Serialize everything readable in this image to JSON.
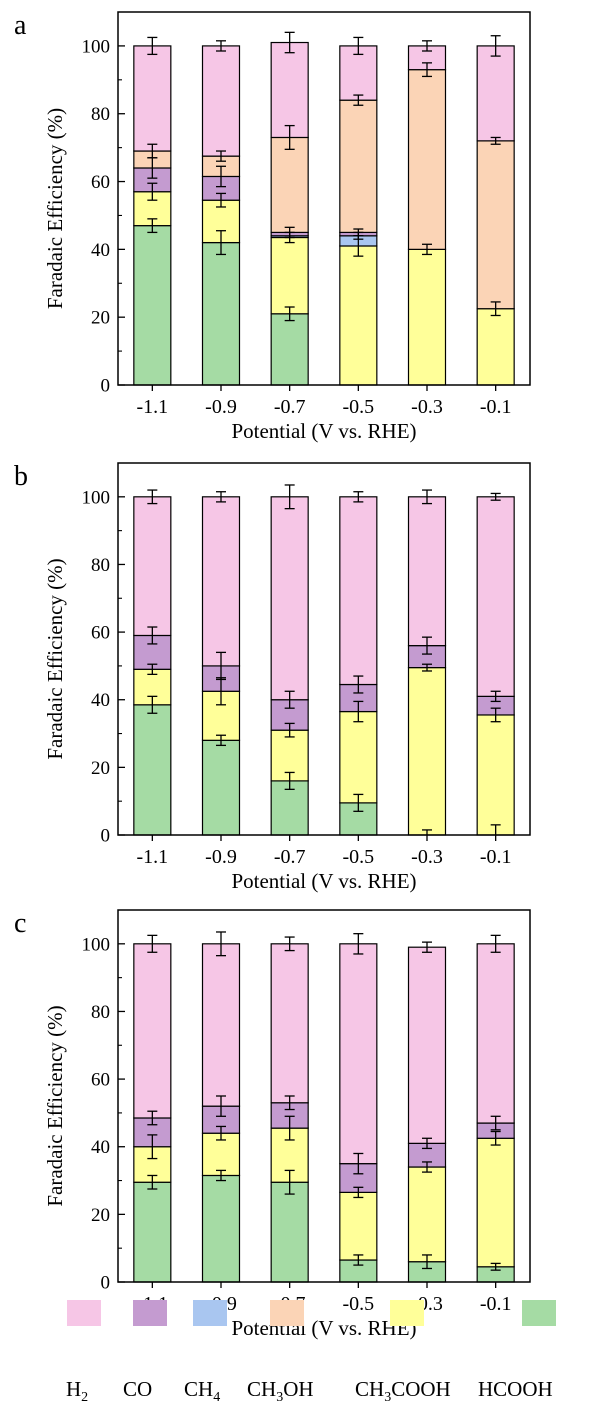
{
  "chart_data": [
    {
      "type": "bar",
      "panel_label": "a",
      "title": "",
      "xlabel": "Potential (V vs. RHE)",
      "ylabel": "Faradaic Efficiency (%)",
      "ylim": [
        0,
        110
      ],
      "yticks": [
        0,
        20,
        40,
        60,
        80,
        100
      ],
      "grid": false,
      "stacked": true,
      "categories": [
        "-1.1",
        "-0.9",
        "-0.7",
        "-0.5",
        "-0.3",
        "-0.1"
      ],
      "series": [
        {
          "name": "HCOOH",
          "values": [
            47,
            42,
            21,
            0,
            0,
            0
          ],
          "errors": [
            2,
            3.5,
            2,
            0,
            0,
            0
          ]
        },
        {
          "name": "CH3COOH",
          "values": [
            10,
            12.5,
            22.5,
            41,
            40,
            22.5
          ],
          "errors": [
            2.5,
            2,
            1.5,
            3,
            1.5,
            2
          ]
        },
        {
          "name": "CH4",
          "values": [
            0,
            0,
            0.5,
            3,
            0,
            0
          ],
          "errors": [
            0,
            0,
            0,
            1,
            0,
            0
          ]
        },
        {
          "name": "CO",
          "values": [
            7,
            7,
            1,
            1,
            0,
            0
          ],
          "errors": [
            3,
            3,
            1.5,
            1,
            0,
            0
          ]
        },
        {
          "name": "CH3OH",
          "values": [
            5,
            6,
            28,
            39,
            53,
            49.5
          ],
          "errors": [
            2,
            1.5,
            3.5,
            1.5,
            2,
            1
          ]
        },
        {
          "name": "H2",
          "values": [
            31,
            32.5,
            28,
            16,
            7,
            28
          ],
          "errors": [
            2.5,
            1.5,
            3,
            2.5,
            1.5,
            3
          ]
        }
      ]
    },
    {
      "type": "bar",
      "panel_label": "b",
      "title": "",
      "xlabel": "Potential (V vs. RHE)",
      "ylabel": "Faradaic Efficiency (%)",
      "ylim": [
        0,
        110
      ],
      "yticks": [
        0,
        20,
        40,
        60,
        80,
        100
      ],
      "grid": false,
      "stacked": true,
      "categories": [
        "-1.1",
        "-0.9",
        "-0.7",
        "-0.5",
        "-0.3",
        "-0.1"
      ],
      "series": [
        {
          "name": "HCOOH",
          "values": [
            38.5,
            28,
            16,
            9.5,
            0,
            0
          ],
          "errors": [
            2.5,
            1.5,
            2.5,
            2.5,
            1.5,
            3
          ]
        },
        {
          "name": "CH3COOH",
          "values": [
            10.5,
            14.5,
            15,
            27,
            49.5,
            35.5
          ],
          "errors": [
            1.5,
            4,
            2,
            3,
            1,
            2
          ]
        },
        {
          "name": "CH4",
          "values": [
            0,
            0,
            0,
            0,
            0,
            0
          ],
          "errors": [
            0,
            0,
            0,
            0,
            0,
            0
          ]
        },
        {
          "name": "CO",
          "values": [
            10,
            7.5,
            9,
            8,
            6.5,
            5.5
          ],
          "errors": [
            2.5,
            4,
            2.5,
            2.5,
            2.5,
            1.5
          ]
        },
        {
          "name": "CH3OH",
          "values": [
            0,
            0,
            0,
            0,
            0,
            0
          ],
          "errors": [
            0,
            0,
            0,
            0,
            0,
            0
          ]
        },
        {
          "name": "H2",
          "values": [
            41,
            50,
            60,
            55.5,
            44,
            59
          ],
          "errors": [
            2,
            1.5,
            3.5,
            1.5,
            2,
            1
          ]
        }
      ]
    },
    {
      "type": "bar",
      "panel_label": "c",
      "title": "",
      "xlabel": "Potential (V vs. RHE)",
      "ylabel": "Faradaic Efficiency (%)",
      "ylim": [
        0,
        110
      ],
      "yticks": [
        0,
        20,
        40,
        60,
        80,
        100
      ],
      "grid": false,
      "stacked": true,
      "categories": [
        "-1.1",
        "-0.9",
        "-0.7",
        "-0.5",
        "-0.3",
        "-0.1"
      ],
      "series": [
        {
          "name": "HCOOH",
          "values": [
            29.5,
            31.5,
            29.5,
            6.5,
            6,
            4.5
          ],
          "errors": [
            2,
            1.5,
            3.5,
            1.5,
            2,
            1
          ]
        },
        {
          "name": "CH3COOH",
          "values": [
            10.5,
            12.5,
            16,
            20,
            28,
            38
          ],
          "errors": [
            3.5,
            2,
            3.5,
            1.5,
            1.5,
            2
          ]
        },
        {
          "name": "CH4",
          "values": [
            0,
            0,
            0,
            0,
            0,
            0
          ],
          "errors": [
            0,
            0,
            0,
            0,
            0,
            0
          ]
        },
        {
          "name": "CO",
          "values": [
            8.5,
            8,
            7.5,
            8.5,
            7,
            4.5
          ],
          "errors": [
            2,
            3,
            2,
            3,
            1.5,
            2
          ]
        },
        {
          "name": "CH3OH",
          "values": [
            0,
            0,
            0,
            0,
            0,
            0
          ],
          "errors": [
            0,
            0,
            0,
            0,
            0,
            0
          ]
        },
        {
          "name": "H2",
          "values": [
            51.5,
            48,
            47,
            65,
            58,
            53
          ],
          "errors": [
            2.5,
            3.5,
            2,
            3,
            1.5,
            2.5
          ]
        }
      ]
    }
  ],
  "legend": {
    "placement": "bottom",
    "items": [
      {
        "key": "H2",
        "main": "H",
        "sub": "2",
        "tail": "",
        "color": "#f6c6e6"
      },
      {
        "key": "CO",
        "main": "CO",
        "sub": "",
        "tail": "",
        "color": "#c49bd0"
      },
      {
        "key": "CH4",
        "main": "CH",
        "sub": "4",
        "tail": "",
        "color": "#a9c6f0"
      },
      {
        "key": "CH3OH",
        "main": "CH",
        "sub": "3",
        "tail": "OH",
        "color": "#fbd4b6"
      },
      {
        "key": "CH3COOH",
        "main": "CH",
        "sub": "3",
        "tail": "COOH",
        "color": "#ffff99"
      },
      {
        "key": "HCOOH",
        "main": "HCOOH",
        "sub": "",
        "tail": "",
        "color": "#a5dba4"
      }
    ]
  },
  "colors": {
    "H2": "#f6c6e6",
    "CO": "#c49bd0",
    "CH4": "#a9c6f0",
    "CH3OH": "#fbd4b6",
    "CH3COOH": "#ffff99",
    "HCOOH": "#a5dba4",
    "outline": "#000000"
  }
}
